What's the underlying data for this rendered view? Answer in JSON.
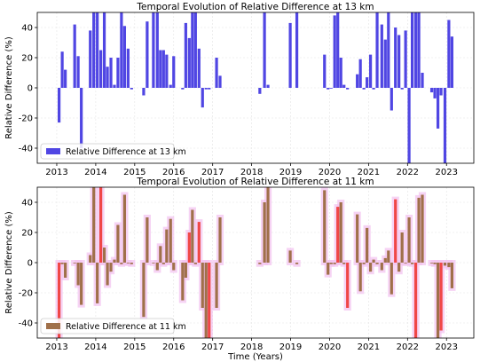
{
  "chart_data": [
    {
      "type": "bar",
      "title": "Temporal Evolution of Relative Difference at 13 km",
      "xlabel": "",
      "ylabel": "Relative Difference (%)",
      "xlim": [
        2012.5,
        2023.7
      ],
      "ylim": [
        -50,
        50
      ],
      "xticks": [
        "2013",
        "2014",
        "2015",
        "2016",
        "2017",
        "2018",
        "2019",
        "2020",
        "2021",
        "2022",
        "2023"
      ],
      "yticks": [
        "-40",
        "-20",
        "0",
        "20",
        "40"
      ],
      "grid": true,
      "legend": {
        "position": "lower-left",
        "entries": [
          "Relative Difference at 13 km"
        ]
      },
      "colors": {
        "bar": "#5046e3"
      },
      "series": [
        {
          "name": "Relative Difference at 13 km",
          "x": [
            2013.06,
            2013.14,
            2013.22,
            2013.46,
            2013.55,
            2013.63,
            2013.86,
            2013.95,
            2014.04,
            2014.13,
            2014.22,
            2014.3,
            2014.39,
            2014.48,
            2014.57,
            2014.66,
            2014.74,
            2014.83,
            2014.92,
            2015.23,
            2015.32,
            2015.48,
            2015.58,
            2015.66,
            2015.74,
            2015.82,
            2015.92,
            2016.0,
            2016.23,
            2016.31,
            2016.4,
            2016.48,
            2016.56,
            2016.65,
            2016.74,
            2016.83,
            2016.91,
            2017.1,
            2017.19,
            2018.21,
            2018.33,
            2018.42,
            2018.99,
            2019.16,
            2019.87,
            2019.96,
            2020.04,
            2020.13,
            2020.21,
            2020.29,
            2020.37,
            2020.46,
            2020.71,
            2020.79,
            2020.88,
            2020.96,
            2021.05,
            2021.13,
            2021.22,
            2021.34,
            2021.43,
            2021.51,
            2021.59,
            2021.69,
            2021.78,
            2021.86,
            2021.95,
            2022.04,
            2022.12,
            2022.21,
            2022.29,
            2022.38,
            2022.62,
            2022.7,
            2022.78,
            2022.86,
            2022.96,
            2023.06,
            2023.14
          ],
          "values": [
            -23,
            24,
            12,
            42,
            21,
            -40,
            38,
            50,
            50,
            25,
            50,
            14,
            20,
            2,
            20,
            50,
            41,
            26,
            -1,
            -5,
            44,
            50,
            50,
            25,
            25,
            22,
            2,
            21,
            -1,
            43,
            33,
            50,
            50,
            26,
            -13,
            -1,
            -1,
            20,
            8,
            -4,
            50,
            2,
            43,
            50,
            22,
            -1,
            0,
            48,
            50,
            20,
            2,
            -1,
            9,
            19,
            -1,
            7,
            22,
            -1,
            50,
            42,
            32,
            50,
            -15,
            40,
            35,
            -1,
            38,
            -50,
            50,
            50,
            50,
            10,
            -3,
            -7,
            -27,
            -5,
            -50,
            45,
            34
          ]
        }
      ]
    },
    {
      "type": "bar",
      "title": "Temporal Evolution of Relative Difference at 11 km",
      "xlabel": "Time (Years)",
      "ylabel": "Relative Difference (%)",
      "xlim": [
        2012.5,
        2023.7
      ],
      "ylim": [
        -50,
        50
      ],
      "xticks": [
        "2013",
        "2014",
        "2015",
        "2016",
        "2017",
        "2018",
        "2019",
        "2020",
        "2021",
        "2022",
        "2023"
      ],
      "yticks": [
        "-40",
        "-20",
        "0",
        "20",
        "40"
      ],
      "grid": true,
      "legend": {
        "position": "lower-left",
        "entries": [
          "Relative Difference at 11 km"
        ]
      },
      "colors": {
        "bar": "#a0704a",
        "highlight": "#f04747",
        "halo": "#f3c4f0"
      },
      "series": [
        {
          "name": "Relative Difference at 11 km",
          "x": [
            2013.06,
            2013.14,
            2013.22,
            2013.46,
            2013.55,
            2013.63,
            2013.86,
            2013.95,
            2014.04,
            2014.13,
            2014.22,
            2014.3,
            2014.39,
            2014.48,
            2014.57,
            2014.66,
            2014.74,
            2014.83,
            2014.92,
            2015.23,
            2015.32,
            2015.48,
            2015.58,
            2015.66,
            2015.74,
            2015.82,
            2015.92,
            2016.0,
            2016.23,
            2016.31,
            2016.4,
            2016.48,
            2016.56,
            2016.65,
            2016.74,
            2016.83,
            2016.91,
            2017.1,
            2017.19,
            2018.21,
            2018.33,
            2018.42,
            2018.99,
            2019.16,
            2019.87,
            2019.96,
            2020.04,
            2020.13,
            2020.21,
            2020.29,
            2020.37,
            2020.46,
            2020.71,
            2020.79,
            2020.88,
            2020.96,
            2021.05,
            2021.13,
            2021.22,
            2021.34,
            2021.43,
            2021.51,
            2021.59,
            2021.69,
            2021.78,
            2021.86,
            2021.95,
            2022.04,
            2022.12,
            2022.21,
            2022.29,
            2022.38,
            2022.62,
            2022.7,
            2022.78,
            2022.86,
            2022.96,
            2023.06,
            2023.14
          ],
          "values": [
            -50,
            -1,
            -10,
            0,
            -15,
            -28,
            5,
            50,
            -27,
            50,
            10,
            -15,
            -6,
            2,
            25,
            -1,
            45,
            0,
            -1,
            -36,
            30,
            0,
            -5,
            11,
            -1,
            22,
            29,
            -5,
            -25,
            -10,
            20,
            35,
            -1,
            27,
            -30,
            -50,
            -50,
            -30,
            30,
            -1,
            40,
            50,
            8,
            -1,
            48,
            -8,
            -1,
            -1,
            37,
            40,
            -1,
            -30,
            32,
            -19,
            -1,
            23,
            -6,
            2,
            -1,
            -5,
            3,
            8,
            -21,
            42,
            -6,
            20,
            0,
            30,
            -1,
            -50,
            43,
            45,
            0,
            -1,
            -50,
            -45,
            -2,
            -3,
            -17
          ]
        }
      ]
    }
  ]
}
